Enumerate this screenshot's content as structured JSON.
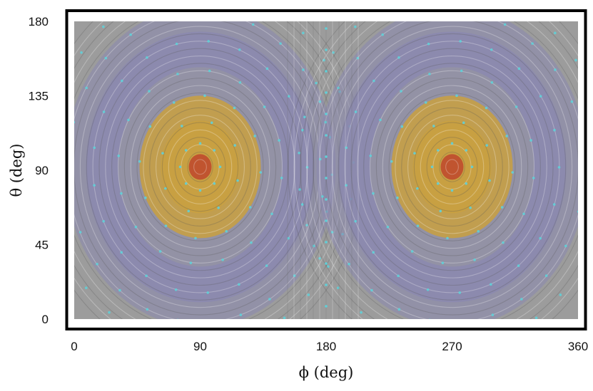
{
  "chart_data": {
    "type": "heatmap",
    "title": "",
    "xlabel": "ϕ (deg)",
    "ylabel": "θ (deg)",
    "xlim": [
      0,
      360
    ],
    "ylim": [
      0,
      180
    ],
    "x_ticks": [
      "0",
      "90",
      "180",
      "270",
      "360"
    ],
    "y_ticks": [
      "0",
      "45",
      "90",
      "135",
      "180"
    ],
    "vortex_centers": [
      {
        "phi": 90,
        "theta": 92
      },
      {
        "phi": 270,
        "theta": 92
      }
    ],
    "grid": false,
    "colors": {
      "core": "#c0502e",
      "inner": "#c9a040",
      "middle": "#8a88b0",
      "outer": "#9c9c9c",
      "markers": "#5fd0d8"
    }
  }
}
